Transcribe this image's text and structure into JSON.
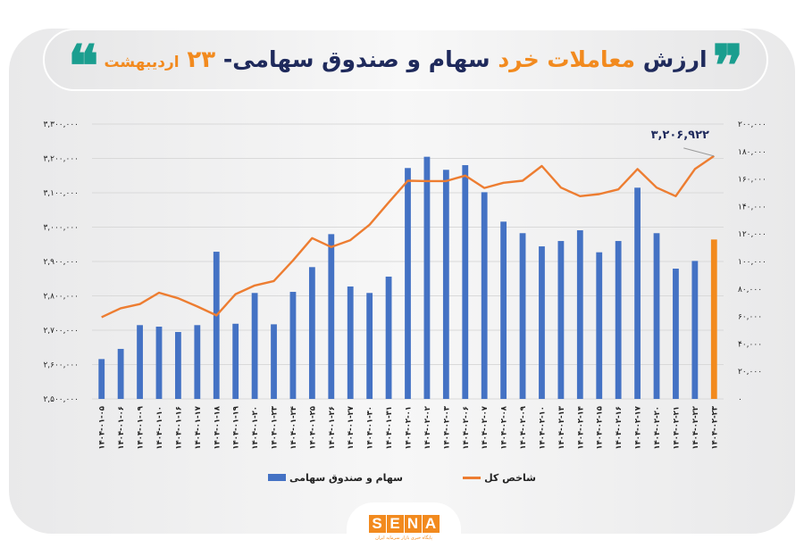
{
  "title": {
    "part1": "ارزش",
    "part2": "معاملات خرد",
    "part3": "سهام و صندوق سهامی-",
    "number": "۲۳",
    "date": "اردیبهشت",
    "quote_open": "❞",
    "quote_close": "❝"
  },
  "colors": {
    "bar": "#4472c4",
    "bar_highlight": "#f28a1e",
    "line": "#ed7d31",
    "title_dark": "#1f2a5c",
    "title_accent": "#f28a1e",
    "quote": "#1a9e8f",
    "gridline": "#d9d9d9"
  },
  "left_axis_ticks": [
    "۳,۳۰۰,۰۰۰",
    "۳,۲۰۰,۰۰۰",
    "۳,۱۰۰,۰۰۰",
    "۳,۰۰۰,۰۰۰",
    "۲,۹۰۰,۰۰۰",
    "۲,۸۰۰,۰۰۰",
    "۲,۷۰۰,۰۰۰",
    "۲,۶۰۰,۰۰۰",
    "۲,۵۰۰,۰۰۰"
  ],
  "right_axis_ticks": [
    "۲۰۰,۰۰۰",
    "۱۸۰,۰۰۰",
    "۱۶۰,۰۰۰",
    "۱۴۰,۰۰۰",
    "۱۲۰,۰۰۰",
    "۱۰۰,۰۰۰",
    "۸۰,۰۰۰",
    "۶۰,۰۰۰",
    "۴۰,۰۰۰",
    "۲۰,۰۰۰",
    "۰"
  ],
  "annotation": {
    "label": "۳,۲۰۶,۹۲۲",
    "value": 3206922
  },
  "legend": {
    "line_label": "شاخص کل",
    "bar_label": "سهام و صندوق سهامی"
  },
  "logo": {
    "letters": [
      "S",
      "E",
      "N",
      "A"
    ],
    "subtitle": "پایگاه خبری بازار سرمایه ایران"
  },
  "chart_data": {
    "type": "bar",
    "title": "ارزش معاملات خرد سهام و صندوق سهامی - ۲۳ اردیبهشت",
    "xlabel": "",
    "ylabel": "",
    "categories": [
      "۱۴۰۴-۰۱-۰۵",
      "۱۴۰۴-۰۱-۰۶",
      "۱۴۰۴-۰۱-۰۹",
      "۱۴۰۴-۰۱-۱۰",
      "۱۴۰۴-۰۱-۱۶",
      "۱۴۰۴-۰۱-۱۷",
      "۱۴۰۴-۰۱-۱۸",
      "۱۴۰۴-۰۱-۱۹",
      "۱۴۰۴-۰۱-۲۰",
      "۱۴۰۴-۰۱-۲۳",
      "۱۴۰۴-۰۱-۲۴",
      "۱۴۰۴-۰۱-۲۵",
      "۱۴۰۴-۰۱-۲۶",
      "۱۴۰۴-۰۱-۲۷",
      "۱۴۰۴-۰۱-۳۰",
      "۱۴۰۴-۰۱-۳۱",
      "۱۴۰۴-۰۲-۰۱",
      "۱۴۰۴-۰۲-۰۲",
      "۱۴۰۴-۰۲-۰۳",
      "۱۴۰۴-۰۲-۰۶",
      "۱۴۰۴-۰۲-۰۷",
      "۱۴۰۴-۰۲-۰۸",
      "۱۴۰۴-۰۲-۰۹",
      "۱۴۰۴-۰۲-۱۰",
      "۱۴۰۴-۰۲-۱۳",
      "۱۴۰۴-۰۲-۱۴",
      "۱۴۰۴-۰۲-۱۵",
      "۱۴۰۴-۰۲-۱۶",
      "۱۴۰۴-۰۲-۱۷",
      "۱۴۰۴-۰۲-۲۰",
      "۱۴۰۴-۰۲-۲۱",
      "۱۴۰۴-۰۲-۲۲",
      "۱۴۰۴-۰۲-۲۳"
    ],
    "series": [
      {
        "name": "سهام و صندوق سهامی",
        "type": "bar",
        "axis": "right",
        "color": "#4472c4",
        "highlight_last_color": "#f28a1e",
        "values": [
          29000,
          36400,
          53700,
          52600,
          48700,
          53700,
          107100,
          54700,
          77100,
          54300,
          77900,
          95900,
          119900,
          81800,
          77100,
          89000,
          168000,
          176200,
          166700,
          170100,
          150400,
          129000,
          120600,
          111000,
          114900,
          122700,
          106700,
          114900,
          153700,
          120600,
          94800,
          100400,
          116000
        ]
      },
      {
        "name": "شاخص کل",
        "type": "line",
        "axis": "left",
        "color": "#ed7d31",
        "values": [
          2738000,
          2764000,
          2776000,
          2809000,
          2793000,
          2769000,
          2743000,
          2805000,
          2830000,
          2843000,
          2903000,
          2968000,
          2942000,
          2962000,
          3007000,
          3072000,
          3135000,
          3134000,
          3134000,
          3150000,
          3114000,
          3129000,
          3135000,
          3178000,
          3115000,
          3090000,
          3096000,
          3110000,
          3169000,
          3115000,
          3090000,
          3169000,
          3206922
        ]
      }
    ],
    "left_axis": {
      "label": "شاخص کل",
      "ylim": [
        2500000,
        3300000
      ],
      "step": 100000
    },
    "right_axis": {
      "label": "سهام و صندوق سهامی",
      "ylim": [
        0,
        200000
      ],
      "step": 20000
    },
    "grid": true,
    "legend_position": "bottom",
    "annotations": [
      {
        "index": 32,
        "series": "شاخص کل",
        "text": "۳,۲۰۶,۹۲۲"
      }
    ]
  }
}
